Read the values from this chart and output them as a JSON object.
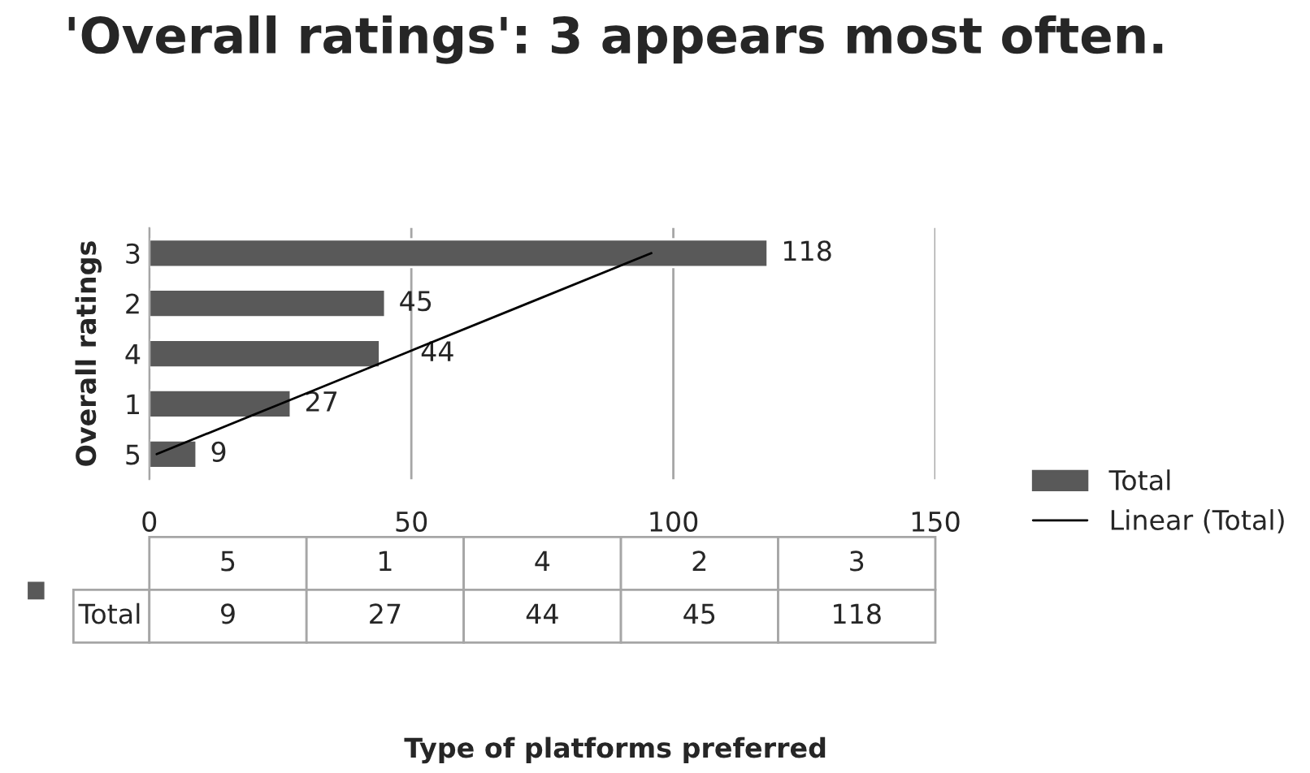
{
  "chart_data": {
    "type": "bar",
    "orientation": "horizontal",
    "title": "'Overall ratings': 3 appears most often.",
    "categories": [
      "3",
      "2",
      "4",
      "1",
      "5"
    ],
    "series": [
      {
        "name": "Total",
        "color": "#595959",
        "values": [
          118,
          45,
          44,
          27,
          9
        ],
        "value_labels": [
          "118",
          "45",
          "44",
          "27",
          "9"
        ]
      },
      {
        "name": "Linear (Total)",
        "type": "line",
        "color": "#000000",
        "values": [
          95.8,
          72.2,
          48.6,
          25.0,
          1.4
        ]
      }
    ],
    "xlim": [
      0,
      150
    ],
    "xticks": [
      0,
      50,
      100,
      150
    ],
    "grid": "x",
    "annotations": [
      "Type of platforms preferred"
    ],
    "ylabel": "Overall ratings",
    "legend": "right"
  }
}
